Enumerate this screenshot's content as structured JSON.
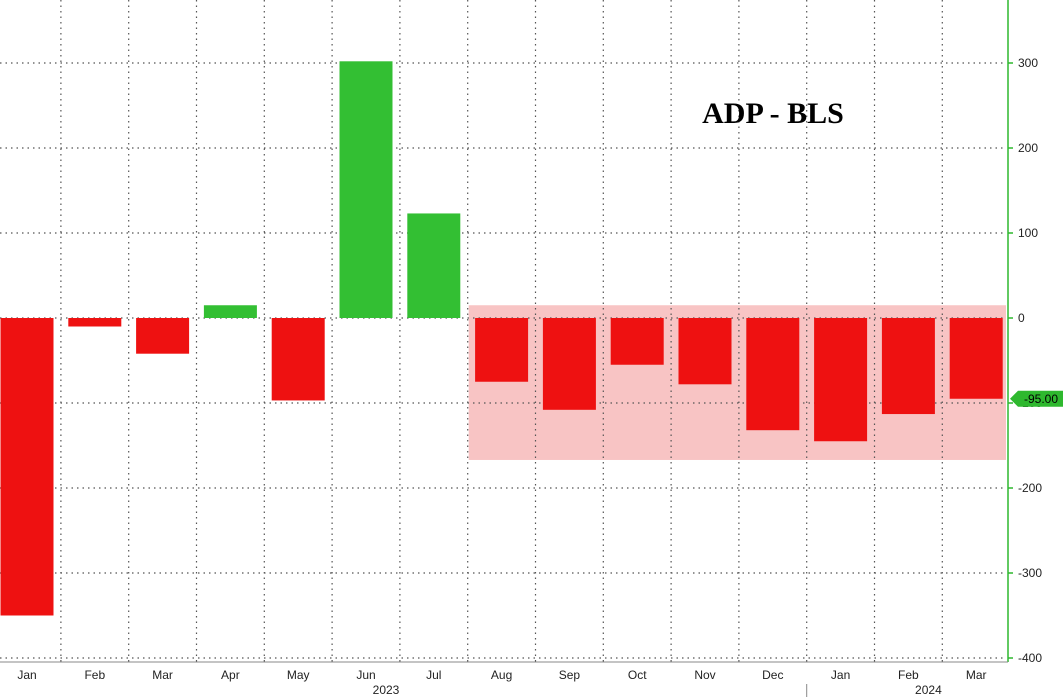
{
  "chart_data": {
    "type": "bar",
    "title": "ADP - BLS",
    "categories": [
      "Jan",
      "Feb",
      "Mar",
      "Apr",
      "May",
      "Jun",
      "Jul",
      "Aug",
      "Sep",
      "Oct",
      "Nov",
      "Dec",
      "Jan",
      "Feb",
      "Mar"
    ],
    "values": [
      -350,
      -10,
      -42,
      15,
      -97,
      302,
      123,
      -75,
      -108,
      -55,
      -78,
      -132,
      -145,
      -113,
      -95
    ],
    "year_labels": [
      {
        "label": "2023",
        "under": "Jun"
      },
      {
        "label": "2024",
        "under": "Feb"
      }
    ],
    "ylim": [
      -400,
      350
    ],
    "yticks": [
      300,
      200,
      100,
      0,
      -100,
      -200,
      -300,
      -400
    ],
    "ytick_labels": [
      "300",
      "200",
      "100",
      "0",
      "-100",
      "-200",
      "-300",
      "-400"
    ],
    "last_value_label": "-95.00",
    "highlight_region": {
      "from_category_index": 7,
      "to_category_index": 14,
      "y_range": [
        -167,
        15
      ]
    },
    "grid": true,
    "colors": {
      "positive": "#33bf33",
      "negative": "#ee1111",
      "highlight": "#f8c4c4",
      "axis": "#2eb82e",
      "grid": "#555555"
    }
  }
}
